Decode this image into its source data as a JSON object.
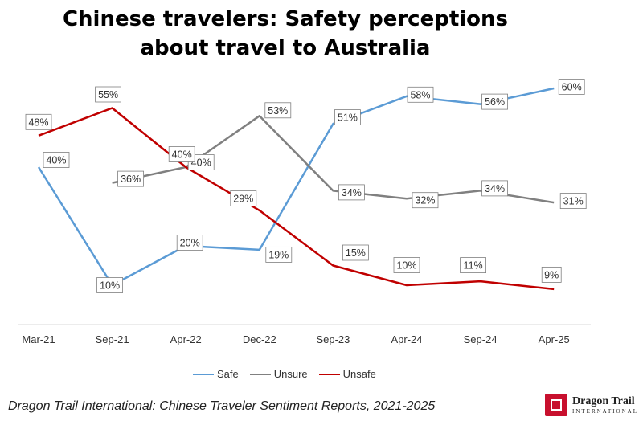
{
  "title": {
    "line1": "Chinese travelers: Safety perceptions",
    "line2": "about travel to Australia"
  },
  "chart_data": {
    "type": "line",
    "title": "Chinese travelers: Safety perceptions about travel to Australia",
    "categories": [
      "Mar-21",
      "Sep-21",
      "Apr-22",
      "Dec-22",
      "Sep-23",
      "Apr-24",
      "Sep-24",
      "Apr-25"
    ],
    "series": [
      {
        "name": "Safe",
        "color": "#5b9bd5",
        "values": [
          40,
          10,
          20,
          19,
          51,
          58,
          56,
          60
        ]
      },
      {
        "name": "Unsure",
        "color": "#808080",
        "values": [
          null,
          36,
          40,
          53,
          34,
          32,
          34,
          31
        ]
      },
      {
        "name": "Unsafe",
        "color": "#c00000",
        "values": [
          48,
          55,
          40,
          29,
          15,
          10,
          11,
          9
        ]
      }
    ],
    "value_format": "percent",
    "grid": false,
    "legend": "bottom"
  },
  "legend": {
    "items": [
      {
        "label": "Safe",
        "color": "#5b9bd5"
      },
      {
        "label": "Unsure",
        "color": "#808080"
      },
      {
        "label": "Unsafe",
        "color": "#c00000"
      }
    ]
  },
  "footer": {
    "source": "Dragon Trail International: Chinese Traveler Sentiment Reports, 2021-2025",
    "logo_name": "Dragon Trail",
    "logo_sub": "INTERNATIONAL"
  }
}
